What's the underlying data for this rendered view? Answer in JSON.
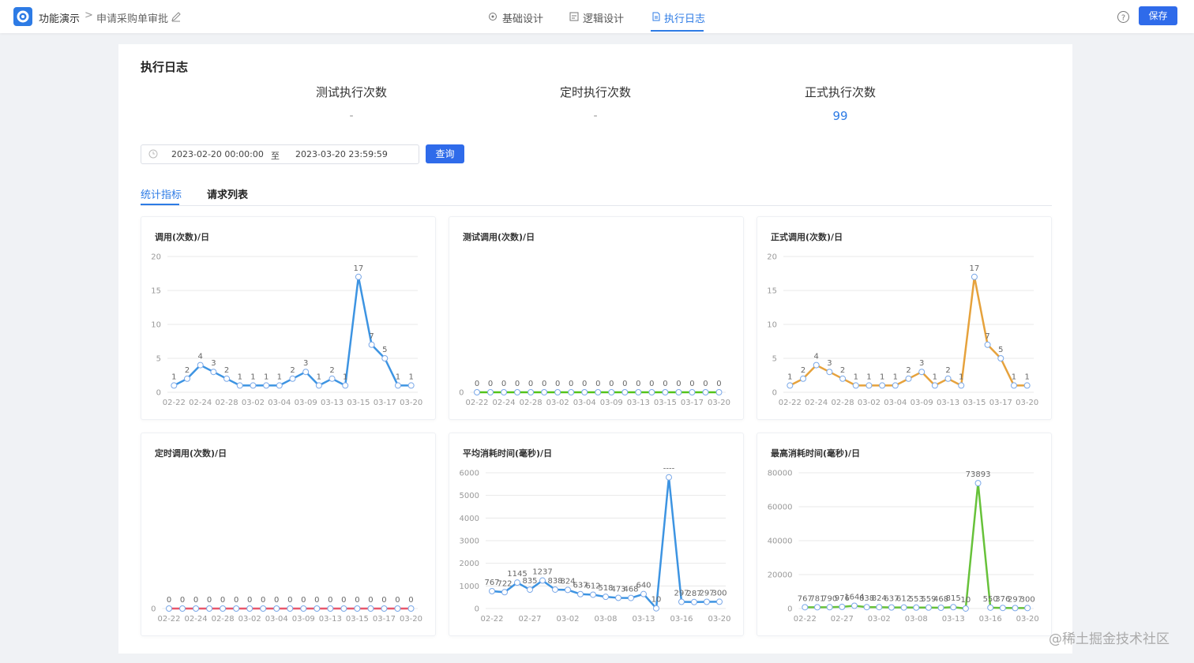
{
  "header": {
    "brand": "功能演示",
    "breadcrumb": "申请采购单审批",
    "tabs": [
      "基础设计",
      "逻辑设计",
      "执行日志"
    ],
    "save": "保存"
  },
  "panel": {
    "title": "执行日志",
    "stats": [
      {
        "label": "测试执行次数",
        "value": "-"
      },
      {
        "label": "定时执行次数",
        "value": "-"
      },
      {
        "label": "正式执行次数",
        "value": 99
      }
    ],
    "date_start": "2023-02-20 00:00:00",
    "date_sep": "至",
    "date_end": "2023-03-20 23:59:59",
    "query": "查询",
    "subtabs": [
      "统计指标",
      "请求列表"
    ]
  },
  "watermark": "@稀土掘金技术社区",
  "chart_data": [
    {
      "type": "line",
      "title": "调用(次数)/日",
      "color": "#3d94e2",
      "categories": [
        "02-22",
        null,
        "02-24",
        null,
        "02-28",
        null,
        "03-02",
        null,
        "03-04",
        null,
        "03-09",
        null,
        "03-13",
        null,
        "03-15",
        null,
        "03-17",
        null,
        "03-20"
      ],
      "values": [
        1,
        2,
        4,
        3,
        2,
        1,
        1,
        1,
        1,
        2,
        3,
        1,
        2,
        1,
        17,
        7,
        5,
        1,
        1
      ],
      "ylim": [
        0,
        20
      ],
      "yticks": [
        0,
        5,
        10,
        15,
        20
      ],
      "grid": true
    },
    {
      "type": "line",
      "title": "测试调用(次数)/日",
      "color": "#52c41a",
      "categories": [
        "02-22",
        null,
        "02-24",
        null,
        "02-28",
        null,
        "03-02",
        null,
        "03-04",
        null,
        "03-09",
        null,
        "03-13",
        null,
        "03-15",
        null,
        "03-17",
        null,
        "03-20"
      ],
      "values": [
        0,
        0,
        0,
        0,
        0,
        0,
        0,
        0,
        0,
        0,
        0,
        0,
        0,
        0,
        0,
        0,
        0,
        0,
        0
      ],
      "ylim": [
        0,
        1
      ],
      "yticks": [
        0
      ],
      "grid": true
    },
    {
      "type": "line",
      "title": "正式调用(次数)/日",
      "color": "#e6a23c",
      "categories": [
        "02-22",
        null,
        "02-24",
        null,
        "02-28",
        null,
        "03-02",
        null,
        "03-04",
        null,
        "03-09",
        null,
        "03-13",
        null,
        "03-15",
        null,
        "03-17",
        null,
        "03-20"
      ],
      "values": [
        1,
        2,
        4,
        3,
        2,
        1,
        1,
        1,
        1,
        2,
        3,
        1,
        2,
        1,
        17,
        7,
        5,
        1,
        1
      ],
      "ylim": [
        0,
        20
      ],
      "yticks": [
        0,
        5,
        10,
        15,
        20
      ],
      "grid": true
    },
    {
      "type": "line",
      "title": "定时调用(次数)/日",
      "color": "#e8586c",
      "categories": [
        "02-22",
        null,
        "02-24",
        null,
        "02-28",
        null,
        "03-02",
        null,
        "03-04",
        null,
        "03-09",
        null,
        "03-13",
        null,
        "03-15",
        null,
        "03-17",
        null,
        "03-20"
      ],
      "values": [
        0,
        0,
        0,
        0,
        0,
        0,
        0,
        0,
        0,
        0,
        0,
        0,
        0,
        0,
        0,
        0,
        0,
        0,
        0
      ],
      "ylim": [
        0,
        1
      ],
      "yticks": [
        0
      ],
      "grid": true
    },
    {
      "type": "line",
      "title": "平均消耗时间(毫秒)/日",
      "color": "#3d94e2",
      "categories": [
        "02-22",
        null,
        null,
        "02-27",
        null,
        null,
        "03-02",
        null,
        null,
        "03-08",
        null,
        null,
        "03-13",
        null,
        null,
        "03-16",
        null,
        null,
        "03-20"
      ],
      "values": [
        767,
        722,
        1145,
        835,
        1237,
        838,
        824,
        637,
        612,
        518,
        473,
        468,
        640,
        10,
        5800,
        297,
        287,
        297,
        300
      ],
      "value_labels": [
        "767",
        "722",
        "1145",
        "835",
        "1237",
        "838",
        "824",
        "637",
        "612",
        "518",
        "473",
        "468",
        "640",
        "10",
        "----",
        "297",
        "287",
        "297",
        "300"
      ],
      "ylim": [
        0,
        6000
      ],
      "yticks": [
        0,
        1000,
        2000,
        3000,
        4000,
        5000,
        6000
      ],
      "grid": true
    },
    {
      "type": "line",
      "title": "最高消耗时间(毫秒)/日",
      "color": "#67c23a",
      "categories": [
        "02-22",
        null,
        null,
        "02-27",
        null,
        null,
        "03-02",
        null,
        null,
        "03-08",
        null,
        null,
        "03-13",
        null,
        null,
        "03-16",
        null,
        null,
        "03-20"
      ],
      "values": [
        767,
        781,
        790,
        976,
        1644,
        838,
        824,
        637,
        612,
        553,
        559,
        468,
        815,
        10,
        73893,
        550,
        376,
        297,
        300
      ],
      "ylim": [
        0,
        80000
      ],
      "yticks": [
        0,
        20000,
        40000,
        60000,
        80000
      ],
      "grid": true
    }
  ]
}
